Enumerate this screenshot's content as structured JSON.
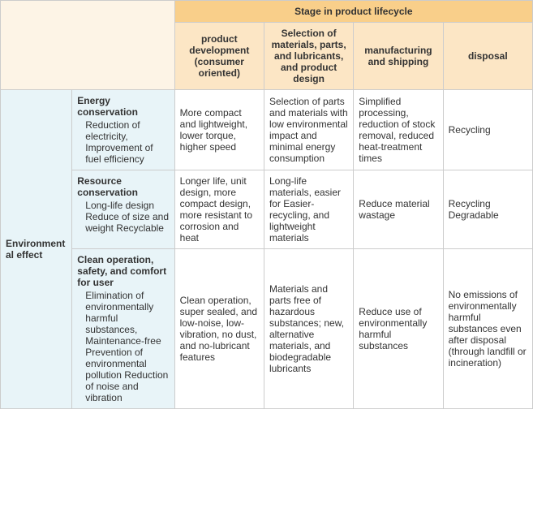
{
  "colors": {
    "header_top_bg": "#f9cf8a",
    "header_sub_bg": "#fce6c5",
    "corner_bg": "#fdf4e6",
    "rowhead_bg": "#e8f4f8",
    "rowsub_bg": "#e8f4f8",
    "cell_bg": "#ffffff",
    "border": "#cccccc",
    "text": "#333333"
  },
  "header": {
    "top": "Stage in product lifecycle",
    "cols": [
      "product development (consumer oriented)",
      "Selection of materials, parts, and lubricants, and product design",
      "manufacturing and shipping",
      "disposal"
    ]
  },
  "rowGroup": {
    "label": "Environmental effect"
  },
  "rows": [
    {
      "title": "Energy conservation",
      "detail": "Reduction of electricity, Improvement of fuel efficiency",
      "cells": [
        "More compact and lightweight, lower torque, higher speed",
        "Selection of parts and materials with low environmental impact and minimal energy consumption",
        "Simplified processing, reduction of stock removal, reduced heat-treatment times",
        "Recycling"
      ]
    },
    {
      "title": "Resource conservation",
      "detail": "Long-life design Reduce of size and weight Recyclable",
      "cells": [
        "Longer life, unit design, more compact design, more resistant to corrosion and heat",
        "Long-life materials, easier for Easier-recycling, and lightweight materials",
        "Reduce material wastage",
        "Recycling Degradable"
      ]
    },
    {
      "title": "Clean operation, safety, and comfort for user",
      "detail": "Elimination of environmentally harmful substances, Maintenance-free Prevention of environmental pollution Reduction of noise and vibration",
      "cells": [
        "Clean operation, super sealed, and low-noise, low-vibration, no dust, and no-lubricant features",
        "Materials and parts free of hazardous substances; new, alternative materials, and biodegradable lubricants",
        "Reduce use of environmentally harmful substances",
        "No emissions of environmentally harmful substances even after disposal (through landfill or incineration)"
      ]
    }
  ]
}
